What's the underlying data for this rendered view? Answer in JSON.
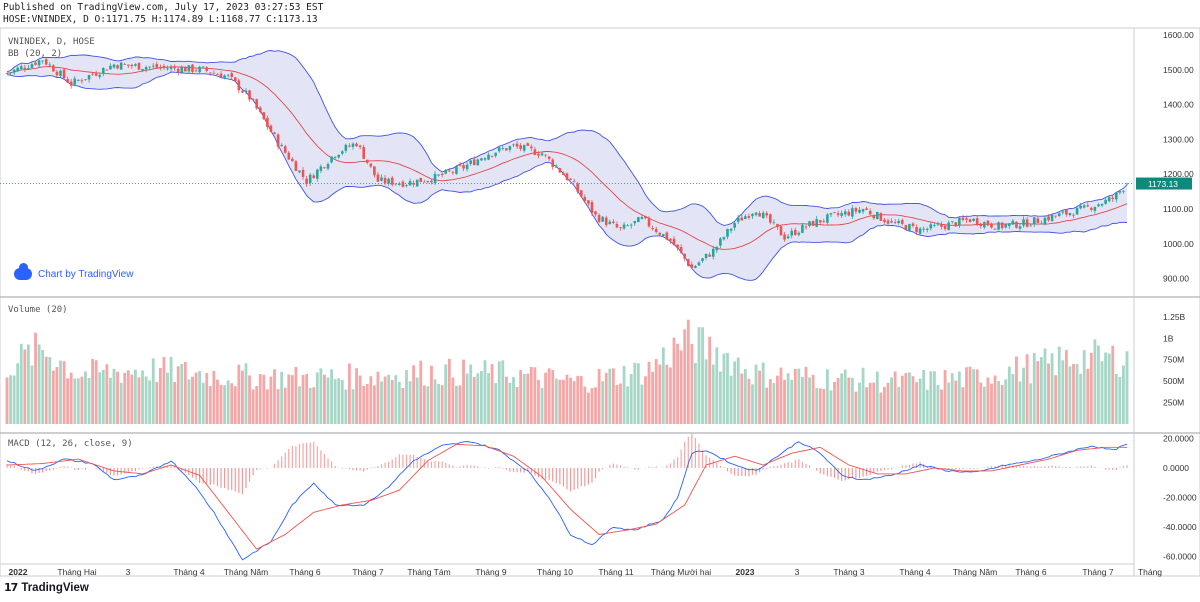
{
  "header": {
    "published": "Published on TradingView.com, July 17, 2023 03:27:53 EST",
    "ohlc": "HOSE:VNINDEX, D O:1171.75 H:1174.89 L:1168.77 C:1173.13"
  },
  "price_pane": {
    "symbol_label": "VNINDEX, D, HOSE",
    "bb_label": "BB (20, 2)",
    "last_price_label": "1173.13",
    "y_ticks": [
      "1600.00",
      "1500.00",
      "1400.00",
      "1300.00",
      "1200.00",
      "1100.00",
      "1000.00",
      "900.00"
    ],
    "watermark": "Chart by TradingView"
  },
  "volume_pane": {
    "label": "Volume (20)",
    "y_ticks": [
      "1.25B",
      "1B",
      "750M",
      "500M",
      "250M"
    ]
  },
  "macd_pane": {
    "label": "MACD (12, 26, close, 9)",
    "y_ticks": [
      "20.0000",
      "0.0000",
      "-20.0000",
      "-40.0000",
      "-60.0000"
    ]
  },
  "x_axis_labels": [
    "2022",
    "Tháng Hai",
    "3",
    "Tháng 4",
    "Tháng Năm",
    "Tháng 6",
    "Tháng 7",
    "Tháng Tám",
    "Tháng 9",
    "Tháng 10",
    "Tháng 11",
    "Tháng Mười hai",
    "2023",
    "3",
    "Tháng 3",
    "Tháng 4",
    "Tháng Năm",
    "Tháng 6",
    "Tháng 7",
    "Tháng"
  ],
  "footer": {
    "logo": "17",
    "brand": "TradingView"
  },
  "colors": {
    "up": "#26a69a",
    "down": "#ef5350",
    "up_vol": "#a5d6c6",
    "down_vol": "#f5a6a6",
    "bb_band": "#3f51e6",
    "bb_fill": "#e3e5f7",
    "bb_basis": "#e04747",
    "macd": "#2962ff",
    "signal": "#ef5350",
    "last_price_bg": "#0e8a7d"
  },
  "chart_data": [
    {
      "type": "candlestick",
      "title": "VNINDEX, D, HOSE",
      "ylim": [
        850,
        1620
      ],
      "overlay": "Bollinger Bands (20, 2)",
      "close_path_anchors": [
        [
          0,
          1490
        ],
        [
          10,
          1530
        ],
        [
          18,
          1460
        ],
        [
          30,
          1515
        ],
        [
          45,
          1505
        ],
        [
          55,
          1500
        ],
        [
          62,
          1480
        ],
        [
          68,
          1420
        ],
        [
          76,
          1290
        ],
        [
          84,
          1180
        ],
        [
          92,
          1260
        ],
        [
          98,
          1290
        ],
        [
          104,
          1180
        ],
        [
          112,
          1175
        ],
        [
          120,
          1190
        ],
        [
          128,
          1220
        ],
        [
          135,
          1260
        ],
        [
          142,
          1280
        ],
        [
          150,
          1260
        ],
        [
          158,
          1180
        ],
        [
          165,
          1080
        ],
        [
          172,
          1040
        ],
        [
          178,
          1070
        ],
        [
          186,
          1010
        ],
        [
          192,
          930
        ],
        [
          198,
          980
        ],
        [
          204,
          1060
        ],
        [
          210,
          1100
        ],
        [
          218,
          1020
        ],
        [
          226,
          1060
        ],
        [
          232,
          1080
        ],
        [
          240,
          1100
        ],
        [
          248,
          1060
        ],
        [
          256,
          1040
        ],
        [
          262,
          1050
        ],
        [
          270,
          1070
        ],
        [
          278,
          1050
        ],
        [
          286,
          1060
        ],
        [
          294,
          1080
        ],
        [
          302,
          1100
        ],
        [
          310,
          1130
        ],
        [
          314,
          1173
        ]
      ],
      "last_close": 1173.13,
      "last_bar": {
        "open": 1171.75,
        "high": 1174.89,
        "low": 1168.77,
        "close": 1173.13
      }
    },
    {
      "type": "bar",
      "title": "Volume (20)",
      "ylim": [
        0,
        1400000000
      ],
      "level_anchors": [
        [
          0,
          700000000
        ],
        [
          10,
          900000000
        ],
        [
          20,
          600000000
        ],
        [
          40,
          650000000
        ],
        [
          60,
          580000000
        ],
        [
          80,
          550000000
        ],
        [
          100,
          570000000
        ],
        [
          120,
          620000000
        ],
        [
          140,
          600000000
        ],
        [
          160,
          500000000
        ],
        [
          180,
          650000000
        ],
        [
          190,
          1000000000
        ],
        [
          200,
          850000000
        ],
        [
          210,
          600000000
        ],
        [
          230,
          550000000
        ],
        [
          250,
          500000000
        ],
        [
          270,
          550000000
        ],
        [
          290,
          700000000
        ],
        [
          300,
          800000000
        ],
        [
          314,
          780000000
        ]
      ]
    },
    {
      "type": "line",
      "title": "MACD (12, 26, close, 9)",
      "ylim": [
        -65,
        23
      ],
      "macd_anchors": [
        [
          0,
          5
        ],
        [
          8,
          -2
        ],
        [
          16,
          6
        ],
        [
          24,
          3
        ],
        [
          30,
          -8
        ],
        [
          38,
          -5
        ],
        [
          46,
          5
        ],
        [
          52,
          -10
        ],
        [
          58,
          -30
        ],
        [
          66,
          -62
        ],
        [
          74,
          -50
        ],
        [
          80,
          -25
        ],
        [
          86,
          -10
        ],
        [
          92,
          -25
        ],
        [
          100,
          -25
        ],
        [
          106,
          -15
        ],
        [
          114,
          5
        ],
        [
          122,
          15
        ],
        [
          130,
          18
        ],
        [
          138,
          12
        ],
        [
          146,
          -2
        ],
        [
          152,
          -20
        ],
        [
          158,
          -45
        ],
        [
          164,
          -52
        ],
        [
          170,
          -40
        ],
        [
          176,
          -42
        ],
        [
          184,
          -35
        ],
        [
          188,
          -20
        ],
        [
          192,
          10
        ],
        [
          196,
          12
        ],
        [
          204,
          2
        ],
        [
          210,
          -2
        ],
        [
          216,
          8
        ],
        [
          222,
          18
        ],
        [
          228,
          10
        ],
        [
          234,
          -5
        ],
        [
          240,
          -8
        ],
        [
          248,
          -5
        ],
        [
          256,
          2
        ],
        [
          264,
          -2
        ],
        [
          272,
          -3
        ],
        [
          280,
          2
        ],
        [
          288,
          5
        ],
        [
          296,
          10
        ],
        [
          304,
          15
        ],
        [
          310,
          12
        ],
        [
          314,
          16
        ]
      ],
      "signal_anchors": [
        [
          0,
          2
        ],
        [
          10,
          3
        ],
        [
          20,
          6
        ],
        [
          30,
          -2
        ],
        [
          38,
          -4
        ],
        [
          46,
          2
        ],
        [
          54,
          -5
        ],
        [
          62,
          -30
        ],
        [
          70,
          -55
        ],
        [
          78,
          -45
        ],
        [
          86,
          -30
        ],
        [
          94,
          -25
        ],
        [
          102,
          -22
        ],
        [
          110,
          -15
        ],
        [
          118,
          5
        ],
        [
          126,
          16
        ],
        [
          134,
          15
        ],
        [
          142,
          8
        ],
        [
          150,
          -6
        ],
        [
          158,
          -28
        ],
        [
          166,
          -45
        ],
        [
          174,
          -42
        ],
        [
          182,
          -38
        ],
        [
          190,
          -25
        ],
        [
          196,
          2
        ],
        [
          204,
          8
        ],
        [
          212,
          2
        ],
        [
          220,
          10
        ],
        [
          228,
          14
        ],
        [
          236,
          2
        ],
        [
          244,
          -4
        ],
        [
          252,
          -4
        ],
        [
          260,
          0
        ],
        [
          268,
          -2
        ],
        [
          276,
          -2
        ],
        [
          284,
          2
        ],
        [
          292,
          6
        ],
        [
          300,
          12
        ],
        [
          308,
          14
        ],
        [
          314,
          14
        ]
      ]
    }
  ]
}
